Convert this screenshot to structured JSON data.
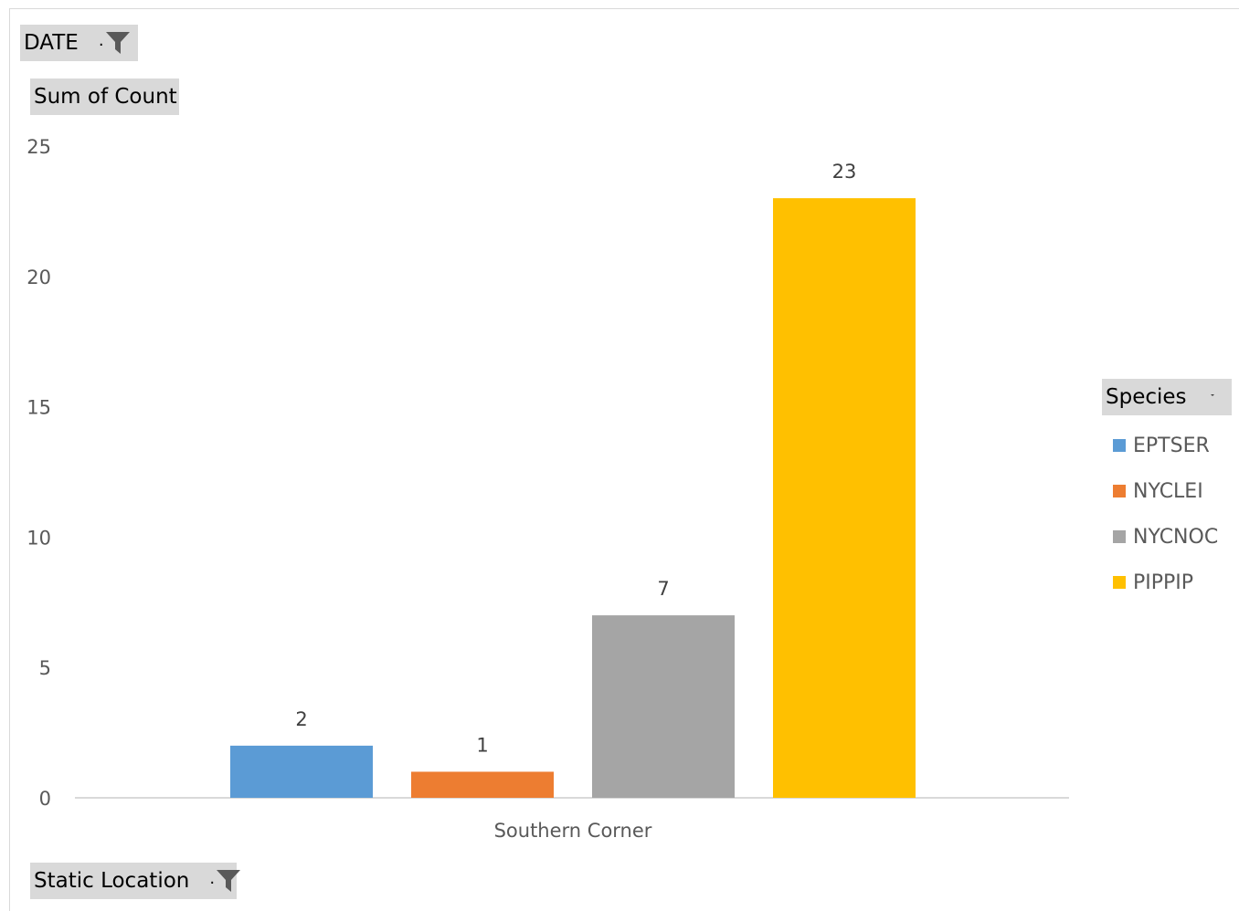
{
  "filters": {
    "date_label": "DATE",
    "value_field_label": "Sum of Count",
    "axis_field_label": "Static Location",
    "legend_field_label": "Species",
    "filter_glyph": ".",
    "filter_icon": "funnel-icon",
    "dropdown_icon": "dropdown-icon"
  },
  "chart_data": {
    "type": "bar",
    "categories": [
      "Southern Corner"
    ],
    "series": [
      {
        "name": "EPTSER",
        "values": [
          2
        ],
        "color": "#5b9bd5"
      },
      {
        "name": "NYCLEI",
        "values": [
          1
        ],
        "color": "#ed7d31"
      },
      {
        "name": "NYCNOC",
        "values": [
          7
        ],
        "color": "#a5a5a5"
      },
      {
        "name": "PIPPIP",
        "values": [
          23
        ],
        "color": "#ffc000"
      }
    ],
    "data_labels": [
      "2",
      "1",
      "7",
      "23"
    ],
    "yticks": [
      "0",
      "5",
      "10",
      "15",
      "20",
      "25"
    ],
    "ylim": [
      0,
      25
    ],
    "grid": false,
    "legend_position": "right"
  }
}
